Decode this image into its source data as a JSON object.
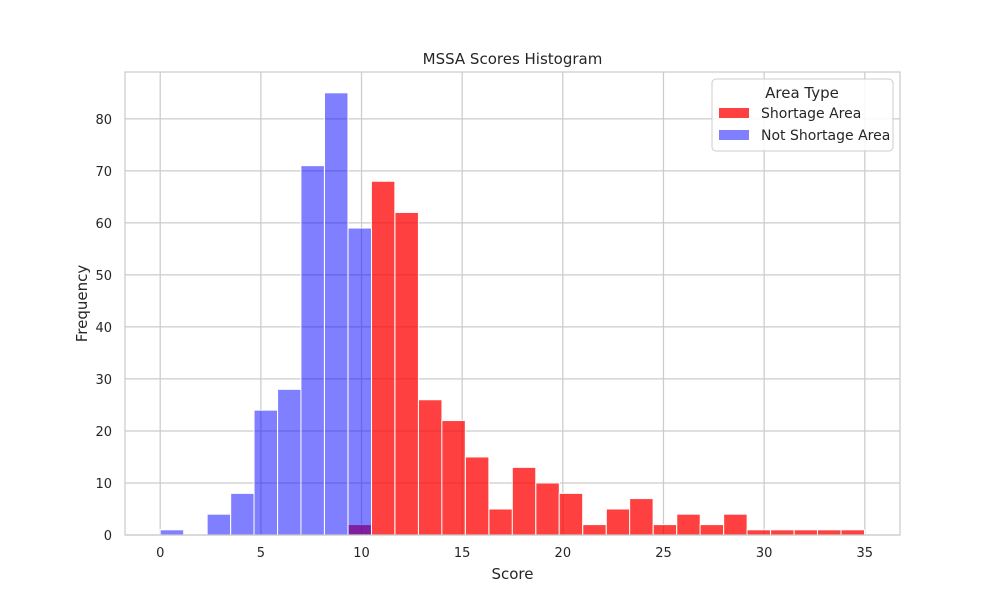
{
  "chart_data": {
    "type": "bar",
    "title": "MSSA Scores Histogram",
    "xlabel": "Score",
    "ylabel": "Frequency",
    "xlim": [
      -1.75,
      36.75
    ],
    "ylim": [
      0,
      89
    ],
    "xticks": [
      0,
      5,
      10,
      15,
      20,
      25,
      30,
      35
    ],
    "yticks": [
      0,
      10,
      20,
      30,
      40,
      50,
      60,
      70,
      80
    ],
    "grid": true,
    "legend": {
      "title": "Area Type",
      "position": "top-right"
    },
    "bin_width": 1.166,
    "series": [
      {
        "name": "Shortage Area",
        "color": "#ff0000",
        "bins": [
          {
            "x0": 9.33,
            "value": 2
          },
          {
            "x0": 10.49,
            "value": 68
          },
          {
            "x0": 11.66,
            "value": 62
          },
          {
            "x0": 12.83,
            "value": 26
          },
          {
            "x0": 13.99,
            "value": 22
          },
          {
            "x0": 15.16,
            "value": 15
          },
          {
            "x0": 16.33,
            "value": 5
          },
          {
            "x0": 17.49,
            "value": 13
          },
          {
            "x0": 18.66,
            "value": 10
          },
          {
            "x0": 19.82,
            "value": 8
          },
          {
            "x0": 20.99,
            "value": 2
          },
          {
            "x0": 22.16,
            "value": 5
          },
          {
            "x0": 23.32,
            "value": 7
          },
          {
            "x0": 24.49,
            "value": 2
          },
          {
            "x0": 25.66,
            "value": 4
          },
          {
            "x0": 26.82,
            "value": 2
          },
          {
            "x0": 27.99,
            "value": 4
          },
          {
            "x0": 29.15,
            "value": 1
          },
          {
            "x0": 30.32,
            "value": 1
          },
          {
            "x0": 31.49,
            "value": 1
          },
          {
            "x0": 32.65,
            "value": 1
          },
          {
            "x0": 33.82,
            "value": 1
          }
        ]
      },
      {
        "name": "Not Shortage Area",
        "color": "#0000ff",
        "bins": [
          {
            "x0": 0.0,
            "value": 1
          },
          {
            "x0": 2.33,
            "value": 4
          },
          {
            "x0": 3.5,
            "value": 8
          },
          {
            "x0": 4.66,
            "value": 24
          },
          {
            "x0": 5.83,
            "value": 28
          },
          {
            "x0": 6.99,
            "value": 71
          },
          {
            "x0": 8.16,
            "value": 85
          },
          {
            "x0": 9.33,
            "value": 59
          }
        ]
      }
    ]
  }
}
